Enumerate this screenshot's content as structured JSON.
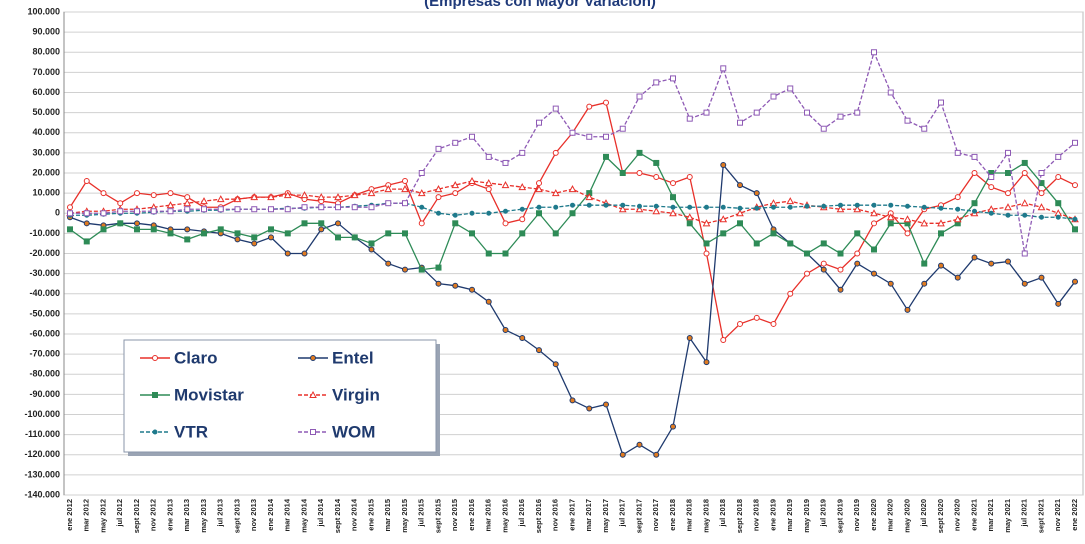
{
  "chart_data": {
    "type": "line",
    "title": "(Empresas con Mayor Variación)",
    "categories": [
      "ene 2012",
      "mar 2012",
      "may 2012",
      "jul 2012",
      "sept 2012",
      "nov 2012",
      "ene 2013",
      "mar 2013",
      "may 2013",
      "jul 2013",
      "sept 2013",
      "nov 2013",
      "ene 2014",
      "mar 2014",
      "may 2014",
      "jul 2014",
      "sept 2014",
      "nov 2014",
      "ene 2015",
      "mar 2015",
      "may 2015",
      "jul 2015",
      "sept 2015",
      "nov 2015",
      "ene 2016",
      "mar 2016",
      "may 2016",
      "jul 2016",
      "sept 2016",
      "nov 2016",
      "ene 2017",
      "mar 2017",
      "may 2017",
      "jul 2017",
      "sept 2017",
      "nov 2017",
      "ene 2018",
      "mar 2018",
      "may 2018",
      "jul 2018",
      "sept 2018",
      "nov 2018",
      "ene 2019",
      "mar 2019",
      "may 2019",
      "jul 2019",
      "sept 2019",
      "nov 2019",
      "ene 2020",
      "mar 2020",
      "may 2020",
      "jul 2020",
      "sept 2020",
      "nov 2020",
      "ene 2021",
      "mar 2021",
      "may 2021",
      "jul 2021",
      "sept 2021",
      "nov 2021",
      "ene 2022"
    ],
    "series": [
      {
        "name": "Claro",
        "color": "#e8302a",
        "marker": "circle",
        "marker_fill": "#ffffff",
        "dashed": false,
        "values": [
          3000,
          16000,
          10000,
          5000,
          10000,
          9000,
          10000,
          8000,
          3000,
          3000,
          7000,
          8000,
          8000,
          10000,
          7000,
          6000,
          5000,
          9000,
          12000,
          14000,
          16000,
          -5000,
          8000,
          10000,
          15000,
          12000,
          -5000,
          -3000,
          15000,
          30000,
          40000,
          53000,
          55000,
          20000,
          20000,
          18000,
          15000,
          18000,
          -20000,
          -63000,
          -55000,
          -52000,
          -55000,
          -40000,
          -30000,
          -25000,
          -28000,
          -20000,
          -5000,
          0,
          -10000,
          2000,
          4000,
          8000,
          20000,
          13000,
          10000,
          20000,
          10000,
          18000,
          14000
        ]
      },
      {
        "name": "Entel",
        "color": "#1f3a6e",
        "marker": "circle",
        "marker_fill": "#e07b20",
        "dashed": false,
        "values": [
          -2000,
          -5000,
          -6000,
          -5000,
          -5000,
          -6000,
          -8000,
          -8000,
          -9000,
          -10000,
          -13000,
          -15000,
          -12000,
          -20000,
          -20000,
          -8000,
          -5000,
          -12000,
          -18000,
          -25000,
          -28000,
          -27000,
          -35000,
          -36000,
          -38000,
          -44000,
          -58000,
          -62000,
          -68000,
          -75000,
          -93000,
          -97000,
          -95000,
          -120000,
          -115000,
          -120000,
          -106000,
          -62000,
          -74000,
          24000,
          14000,
          10000,
          -8000,
          -15000,
          -20000,
          -28000,
          -38000,
          -25000,
          -30000,
          -35000,
          -48000,
          -35000,
          -26000,
          -32000,
          -22000,
          -25000,
          -24000,
          -35000,
          -32000,
          -45000,
          -34000
        ]
      },
      {
        "name": "Movistar",
        "color": "#2e8b57",
        "marker": "square",
        "marker_fill": "#2e8b57",
        "dashed": false,
        "values": [
          -8000,
          -14000,
          -8000,
          -5000,
          -8000,
          -8000,
          -10000,
          -13000,
          -10000,
          -8000,
          -10000,
          -12000,
          -8000,
          -10000,
          -5000,
          -5000,
          -12000,
          -12000,
          -15000,
          -10000,
          -10000,
          -28000,
          -27000,
          -5000,
          -10000,
          -20000,
          -20000,
          -10000,
          0,
          -10000,
          0,
          10000,
          28000,
          20000,
          30000,
          25000,
          8000,
          -5000,
          -15000,
          -10000,
          -5000,
          -15000,
          -10000,
          -15000,
          -20000,
          -15000,
          -20000,
          -10000,
          -18000,
          -5000,
          -5000,
          -25000,
          -10000,
          -5000,
          5000,
          20000,
          20000,
          25000,
          15000,
          5000,
          -8000
        ]
      },
      {
        "name": "Virgin",
        "color": "#e8302a",
        "marker": "triangle",
        "marker_fill": "#ffffff",
        "dashed": true,
        "values": [
          0,
          1000,
          1000,
          2000,
          2000,
          3000,
          4000,
          5000,
          6000,
          7000,
          7000,
          8000,
          8000,
          9000,
          9000,
          8000,
          8000,
          9000,
          10000,
          12000,
          12000,
          10000,
          12000,
          14000,
          16000,
          15000,
          14000,
          13000,
          12000,
          10000,
          12000,
          8000,
          5000,
          2000,
          2000,
          1000,
          0,
          -2000,
          -5000,
          -3000,
          0,
          3000,
          5000,
          6000,
          4000,
          3000,
          2000,
          2000,
          0,
          -2000,
          -3000,
          -5000,
          -5000,
          -3000,
          0,
          2000,
          3000,
          5000,
          3000,
          0,
          -3000
        ]
      },
      {
        "name": "VTR",
        "color": "#1f7a8c",
        "marker": "dot",
        "marker_fill": "#1f7a8c",
        "dashed": true,
        "values": [
          -1000,
          -1000,
          -500,
          0,
          0,
          500,
          1000,
          1000,
          1500,
          1500,
          2000,
          2000,
          2000,
          2500,
          2500,
          3000,
          3000,
          3500,
          4000,
          5000,
          5000,
          3000,
          0,
          -1000,
          0,
          0,
          1000,
          2000,
          3000,
          3000,
          4000,
          4000,
          4000,
          4000,
          3500,
          3500,
          3000,
          3000,
          3000,
          3000,
          2500,
          2500,
          3000,
          3000,
          3500,
          3500,
          4000,
          4000,
          4000,
          4000,
          3500,
          3000,
          2500,
          2000,
          1000,
          0,
          -1000,
          -1000,
          -2000,
          -2000,
          -3000
        ]
      },
      {
        "name": "WOM",
        "color": "#8e5ab5",
        "marker": "square",
        "marker_fill": "#ffffff",
        "dashed": true,
        "values": [
          0,
          0,
          0,
          1000,
          1000,
          1000,
          1000,
          2000,
          2000,
          2000,
          2000,
          2000,
          2000,
          2000,
          3000,
          3000,
          3000,
          3000,
          3000,
          5000,
          5000,
          20000,
          32000,
          35000,
          38000,
          28000,
          25000,
          30000,
          45000,
          52000,
          40000,
          38000,
          38000,
          42000,
          58000,
          65000,
          67000,
          47000,
          50000,
          72000,
          45000,
          50000,
          58000,
          62000,
          50000,
          42000,
          48000,
          50000,
          80000,
          60000,
          46000,
          42000,
          55000,
          30000,
          28000,
          18000,
          30000,
          -20000,
          20000,
          28000,
          35000
        ]
      }
    ],
    "ylim": [
      -140000,
      100000
    ],
    "yticks": [
      {
        "value": -140000,
        "label": "-140.000"
      },
      {
        "value": -130000,
        "label": "-130.000"
      },
      {
        "value": -120000,
        "label": "-120.000"
      },
      {
        "value": -110000,
        "label": "-110.000"
      },
      {
        "value": -100000,
        "label": "-100.000"
      },
      {
        "value": -90000,
        "label": "-90.000"
      },
      {
        "value": -80000,
        "label": "-80.000"
      },
      {
        "value": -70000,
        "label": "-70.000"
      },
      {
        "value": -60000,
        "label": "-60.000"
      },
      {
        "value": -50000,
        "label": "-50.000"
      },
      {
        "value": -40000,
        "label": "-40.000"
      },
      {
        "value": -30000,
        "label": "-30.000"
      },
      {
        "value": -20000,
        "label": "-20.000"
      },
      {
        "value": -10000,
        "label": "-10.000"
      },
      0,
      {
        "value": 10000,
        "label": "10.000"
      },
      {
        "value": 20000,
        "label": "20.000"
      },
      {
        "value": 30000,
        "label": "30.000"
      },
      {
        "value": 40000,
        "label": "40.000"
      },
      {
        "value": 50000,
        "label": "50.000"
      },
      {
        "value": 60000,
        "label": "60.000"
      },
      {
        "value": 70000,
        "label": "70.000"
      },
      {
        "value": 80000,
        "label": "80.000"
      },
      {
        "value": 90000,
        "label": "90.000"
      },
      {
        "value": 100000,
        "label": "100.000"
      }
    ],
    "grid": true,
    "legend": "lower left"
  }
}
